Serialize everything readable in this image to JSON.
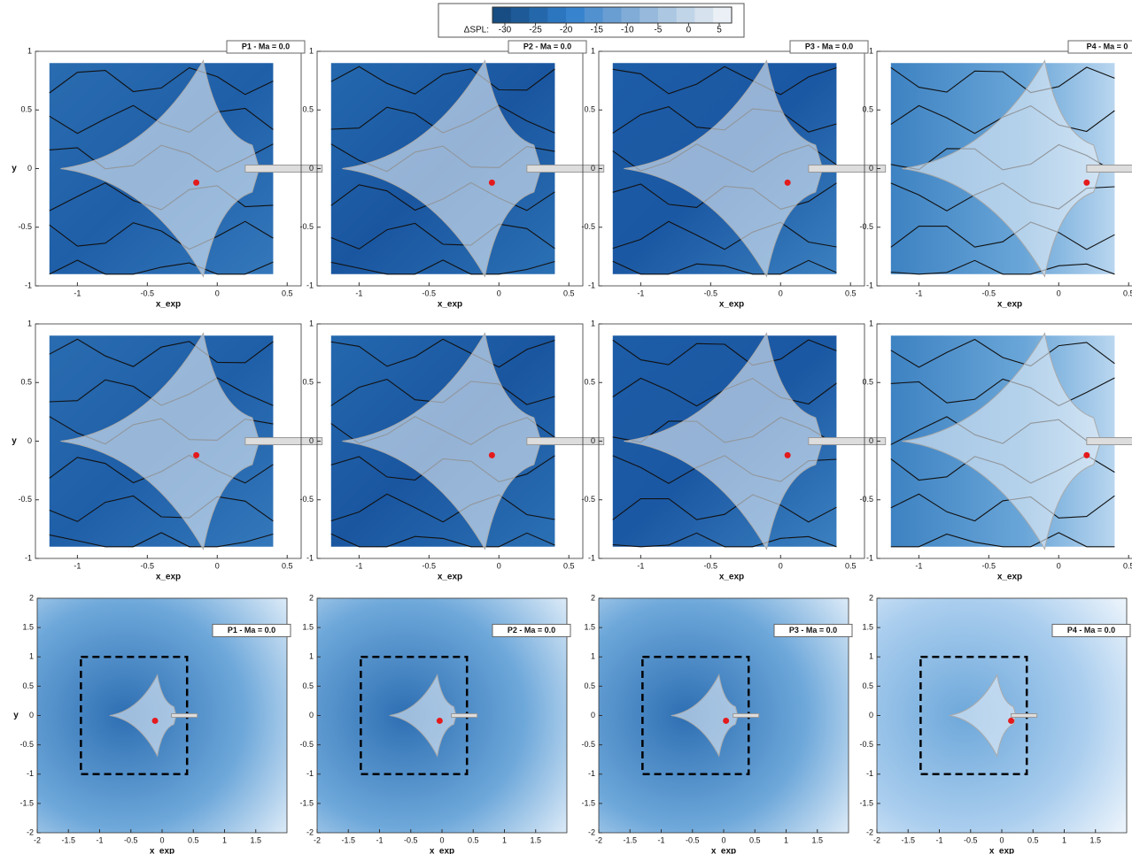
{
  "colorbar": {
    "label": "ΔSPL:",
    "ticks": [
      -30,
      -25,
      -20,
      -15,
      -10,
      -5,
      0,
      5
    ]
  },
  "rows": [
    {
      "xlabel": "x_exp",
      "ylabel": "y",
      "xlim": [
        -1.3,
        0.6
      ],
      "ylim": [
        -1,
        1
      ],
      "xticks": [
        -1,
        -0.5,
        0,
        0.5
      ],
      "yticks": [
        -1,
        -0.5,
        0,
        0.5,
        1
      ],
      "panels": [
        {
          "title": "P1 - Ma = 0.0"
        },
        {
          "title": "P2 - Ma = 0.0"
        },
        {
          "title": "P3 - Ma = 0.0"
        },
        {
          "title": "P4 - Ma = 0"
        }
      ]
    },
    {
      "xlabel": "x_exp",
      "ylabel": "y",
      "xlim": [
        -1.3,
        0.6
      ],
      "ylim": [
        -1,
        1
      ],
      "xticks": [
        -1,
        -0.5,
        0,
        0.5
      ],
      "yticks": [
        -1,
        -0.5,
        0,
        0.5,
        1
      ],
      "panels": [
        {},
        {},
        {},
        {}
      ]
    },
    {
      "xlabel": "x_exp",
      "ylabel": "y",
      "xlim": [
        -2,
        2
      ],
      "ylim": [
        -2,
        2
      ],
      "xticks": [
        -2,
        -1.5,
        -1,
        -0.5,
        0,
        0.5,
        1,
        1.5
      ],
      "yticks": [
        -2,
        -1.5,
        -1,
        -0.5,
        0,
        0.5,
        1,
        1.5,
        2
      ],
      "panels": [
        {
          "title": "P1 - Ma = 0.0"
        },
        {
          "title": "P2 - Ma = 0.0"
        },
        {
          "title": "P3 - Ma = 0.0"
        },
        {
          "title": "P4 - Ma = 0.0"
        }
      ]
    }
  ]
}
